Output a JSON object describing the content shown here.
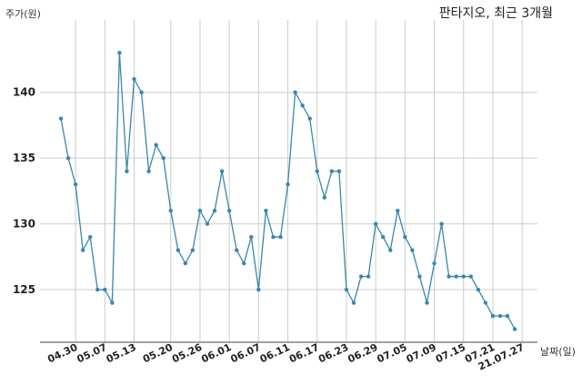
{
  "chart_data": {
    "type": "line",
    "title": "판타지오, 최근 3개월",
    "xlabel": "날짜(일)",
    "ylabel": "주가(원)",
    "ylim": [
      121,
      145.5
    ],
    "yticks": [
      125,
      130,
      135,
      140
    ],
    "grid": true,
    "line_color": "#3a87ad",
    "x_tick_labels": [
      "04.30",
      "05.07",
      "05.13",
      "05.20",
      "05.26",
      "06.01",
      "06.07",
      "06.11",
      "06.17",
      "06.23",
      "06.29",
      "07.05",
      "07.09",
      "07.15",
      "07.21",
      "21.07.27"
    ],
    "x_tick_indices": [
      2,
      6,
      10,
      15,
      19,
      23,
      27,
      31,
      35,
      39,
      43,
      47,
      51,
      55,
      59,
      63
    ],
    "series": [
      {
        "values": [
          138,
          135,
          133,
          128,
          129,
          125,
          125,
          124,
          143,
          134,
          141,
          140,
          134,
          136,
          135,
          131,
          128,
          127,
          128,
          131,
          130,
          131,
          134,
          131,
          128,
          127,
          129,
          125,
          131,
          129,
          129,
          133,
          140,
          139,
          138,
          134,
          132,
          134,
          134,
          125,
          124,
          126,
          126,
          130,
          129,
          128,
          131,
          129,
          128,
          126,
          124,
          127,
          130,
          126,
          126,
          126,
          126,
          125,
          124,
          123,
          123,
          123,
          122
        ]
      }
    ]
  }
}
